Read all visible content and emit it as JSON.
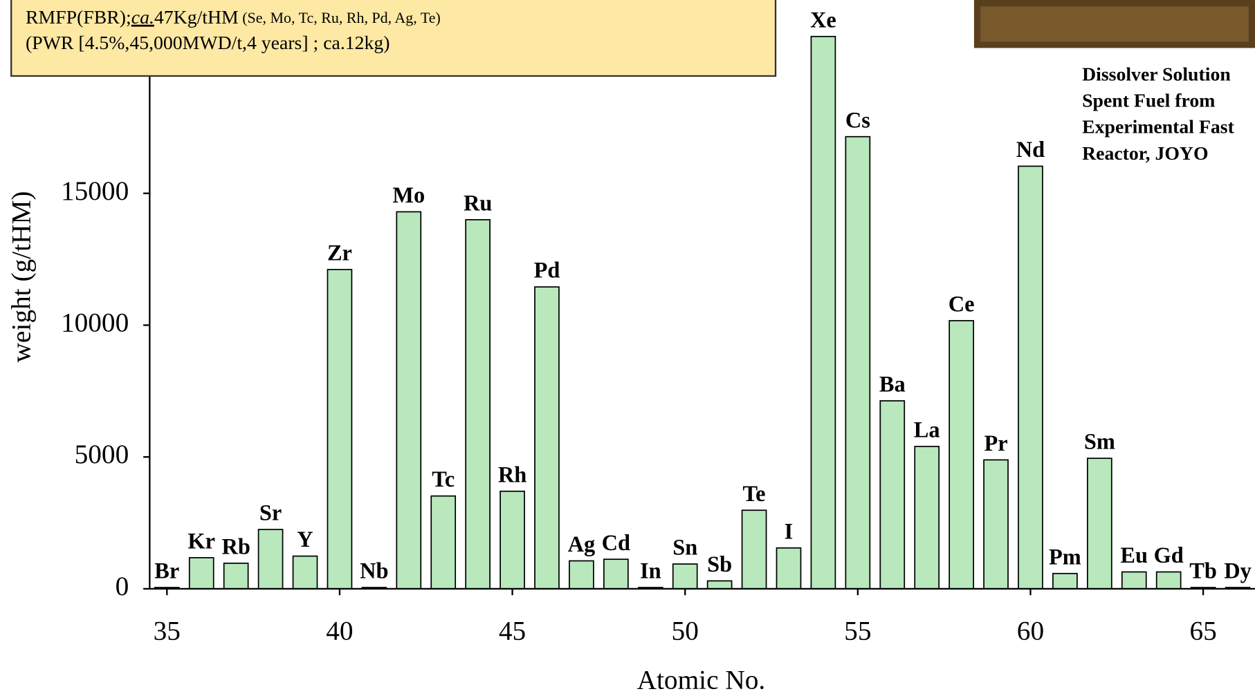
{
  "chart_data": {
    "type": "bar",
    "x_label": "Atomic No.",
    "y_label": "weight (g/tHM)",
    "x": [
      35,
      36,
      37,
      38,
      39,
      40,
      41,
      42,
      43,
      44,
      45,
      46,
      47,
      48,
      49,
      50,
      51,
      52,
      53,
      54,
      55,
      56,
      57,
      58,
      59,
      60,
      61,
      62,
      63,
      64,
      65,
      66
    ],
    "labels": [
      "Br",
      "Kr",
      "Rb",
      "Sr",
      "Y",
      "Zr",
      "Nb",
      "Mo",
      "Tc",
      "Ru",
      "Rh",
      "Pd",
      "Ag",
      "Cd",
      "In",
      "Sn",
      "Sb",
      "Te",
      "I",
      "Xe",
      "Cs",
      "Ba",
      "La",
      "Ce",
      "Pr",
      "Nd",
      "Pm",
      "Sm",
      "Eu",
      "Gd",
      "Tb",
      "Dy"
    ],
    "values": [
      50,
      1180,
      970,
      2250,
      1240,
      12110,
      50,
      14300,
      3520,
      14000,
      3700,
      11450,
      1060,
      1120,
      50,
      940,
      300,
      2980,
      1550,
      20950,
      17150,
      7130,
      5400,
      10170,
      4890,
      16030,
      580,
      4950,
      640,
      640,
      50,
      50
    ],
    "color": "#b8e8bc",
    "xlim": [
      34.5,
      66.5
    ],
    "xticks": [
      35,
      40,
      45,
      50,
      55,
      60,
      65
    ],
    "ylim": [
      0,
      22000
    ],
    "yticks": [
      0,
      5000,
      10000,
      15000
    ],
    "annotation": {
      "line1": [
        "RMFP(FBR);",
        "ca.",
        "47Kg/tHM",
        " (Se, Mo, Tc, Ru, Rh, Pd, Ag, Te)"
      ],
      "line2": "(PWR [4.5%,45,000MWD/t,4 years]   ; ca.12kg)"
    },
    "photo_caption": [
      "Dissolver Solution",
      "Spent Fuel from",
      "Experimental Fast",
      "Reactor, JOYO"
    ]
  }
}
